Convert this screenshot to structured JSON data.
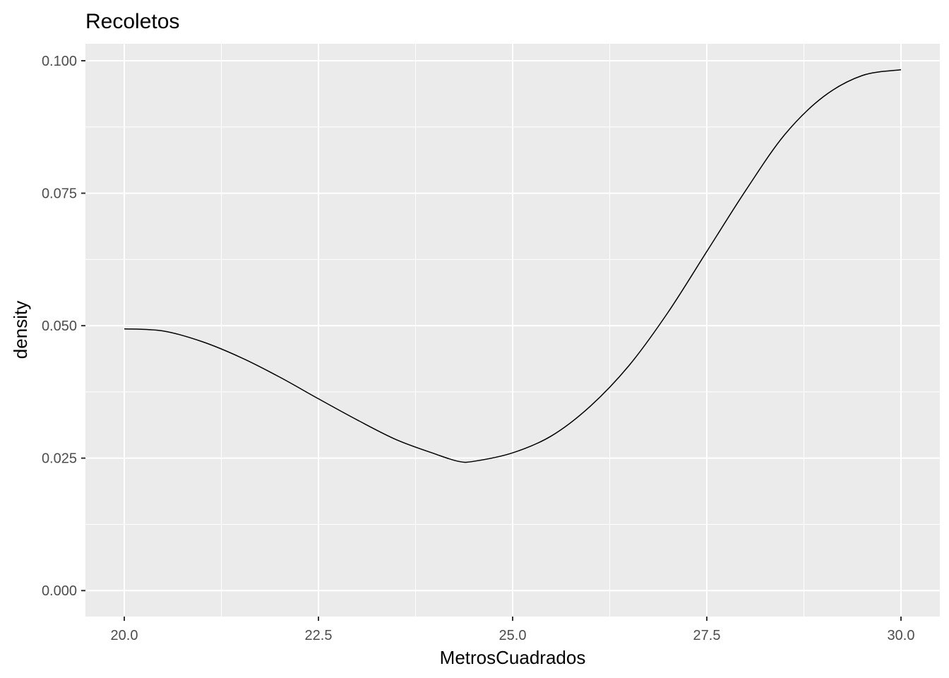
{
  "chart_data": {
    "type": "line",
    "title": "Recoletos",
    "xlabel": "MetrosCuadrados",
    "ylabel": "density",
    "xlim": [
      19.5,
      30.5
    ],
    "ylim": [
      -0.0049,
      0.1032
    ],
    "x_ticks": [
      {
        "value": 20.0,
        "label": "20.0"
      },
      {
        "value": 22.5,
        "label": "22.5"
      },
      {
        "value": 25.0,
        "label": "25.0"
      },
      {
        "value": 27.5,
        "label": "27.5"
      },
      {
        "value": 30.0,
        "label": "30.0"
      }
    ],
    "y_ticks": [
      {
        "value": 0.0,
        "label": "0.000"
      },
      {
        "value": 0.025,
        "label": "0.025"
      },
      {
        "value": 0.05,
        "label": "0.050"
      },
      {
        "value": 0.075,
        "label": "0.075"
      },
      {
        "value": 0.1,
        "label": "0.100"
      }
    ],
    "grid": true,
    "colors": {
      "panel": "#ebebeb",
      "grid": "#ffffff",
      "line": "#000000"
    },
    "series": [
      {
        "values": [
          {
            "x": 20.0,
            "y": 0.0494
          },
          {
            "x": 20.5,
            "y": 0.049
          },
          {
            "x": 21.0,
            "y": 0.047
          },
          {
            "x": 21.5,
            "y": 0.044
          },
          {
            "x": 22.0,
            "y": 0.0403
          },
          {
            "x": 22.5,
            "y": 0.0362
          },
          {
            "x": 23.0,
            "y": 0.0322
          },
          {
            "x": 23.5,
            "y": 0.0285
          },
          {
            "x": 24.0,
            "y": 0.0258
          },
          {
            "x": 24.3,
            "y": 0.0244
          },
          {
            "x": 24.5,
            "y": 0.0244
          },
          {
            "x": 25.0,
            "y": 0.026
          },
          {
            "x": 25.5,
            "y": 0.0292
          },
          {
            "x": 26.0,
            "y": 0.0348
          },
          {
            "x": 26.5,
            "y": 0.0425
          },
          {
            "x": 27.0,
            "y": 0.0525
          },
          {
            "x": 27.5,
            "y": 0.064
          },
          {
            "x": 28.0,
            "y": 0.0755
          },
          {
            "x": 28.5,
            "y": 0.086
          },
          {
            "x": 29.0,
            "y": 0.0932
          },
          {
            "x": 29.5,
            "y": 0.0972
          },
          {
            "x": 30.0,
            "y": 0.0983
          }
        ]
      }
    ]
  }
}
